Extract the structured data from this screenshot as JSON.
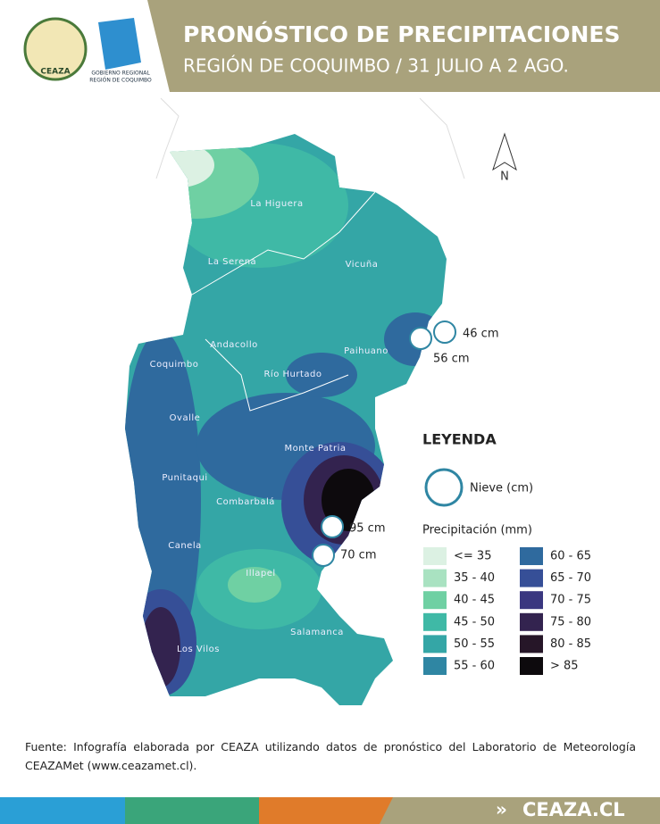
{
  "header": {
    "title": "PRONÓSTICO DE PRECIPITACIONES",
    "subtitle": "REGIÓN DE COQUIMBO / 31 JULIO A 2 AGO.",
    "logos": [
      "CEAZA",
      "GOBIERNO REGIONAL",
      "REGIÓN DE COQUIMBO"
    ]
  },
  "map": {
    "north": "N",
    "places": [
      "La Higuera",
      "La Serena",
      "Vicuña",
      "Andacollo",
      "Paihuano",
      "Coquimbo",
      "Río Hurtado",
      "Ovalle",
      "Monte Patria",
      "Punitaqui",
      "Combarbalá",
      "Canela",
      "Illapel",
      "Salamanca",
      "Los Vilos"
    ],
    "snow": [
      "46 cm",
      "56 cm",
      "95 cm",
      "70 cm"
    ]
  },
  "legend": {
    "title": "LEYENDA",
    "snow": "Nieve (cm)",
    "precip_title": "Precipitación (mm)",
    "items": [
      {
        "label": "<= 35",
        "color": "#dcf1e3"
      },
      {
        "label": "35 - 40",
        "color": "#a9e2c1"
      },
      {
        "label": "40 - 45",
        "color": "#6fd0a3"
      },
      {
        "label": "45 - 50",
        "color": "#3fb9a6"
      },
      {
        "label": "50 - 55",
        "color": "#34a6a6"
      },
      {
        "label": "55 - 60",
        "color": "#2f86a3"
      },
      {
        "label": "60 - 65",
        "color": "#2f6a9e"
      },
      {
        "label": "65 - 70",
        "color": "#364f97"
      },
      {
        "label": "70 - 75",
        "color": "#3a3780"
      },
      {
        "label": "75 - 80",
        "color": "#33234f"
      },
      {
        "label": "80 - 85",
        "color": "#261628"
      },
      {
        "label": "> 85",
        "color": "#0d0a0d"
      }
    ]
  },
  "footer": {
    "source": "Fuente: Infografía elaborada por CEAZA utilizando datos de pronóstico del Laboratorio de Meteorología CEAZAMet (www.ceazamet.cl).",
    "site": "CEAZA.CL"
  }
}
